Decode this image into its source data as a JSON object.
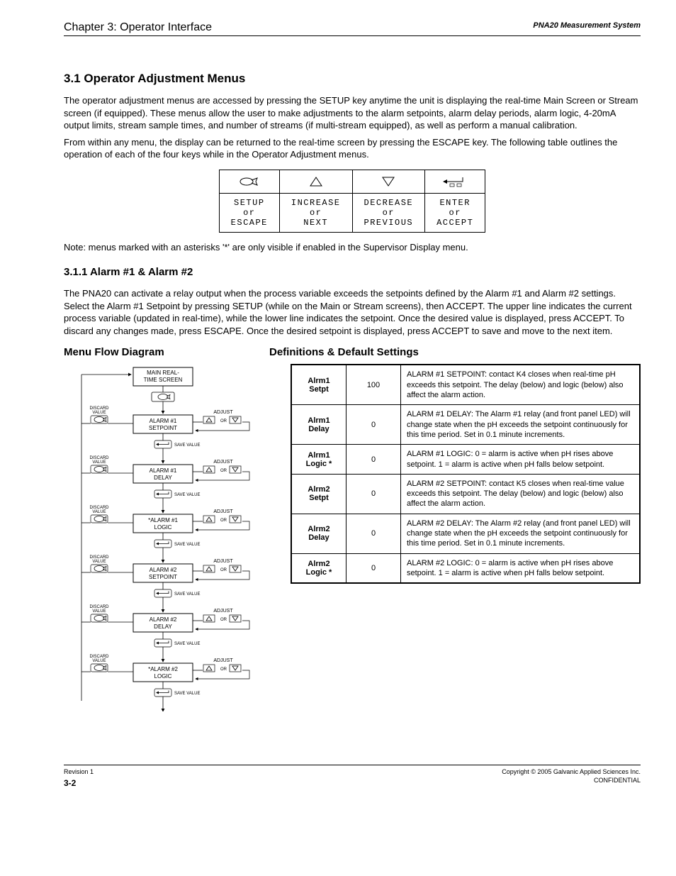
{
  "header": {
    "left": "Chapter 3: Operator Interface",
    "right": "PNA20 Measurement System"
  },
  "section": {
    "title": "3.1 Operator Adjustment Menus",
    "intro_p1": "The operator adjustment menus are accessed by pressing the ",
    "intro_setup": "SETUP",
    "intro_p1b": " key anytime the unit is displaying the real-time Main Screen or Stream screen (if equipped). These menus allow the user to make adjustments to the alarm setpoints, alarm delay periods, alarm logic, 4-20mA output limits, stream sample times, and number of streams (if multi-stream equipped), as well as perform a manual calibration.",
    "intro_p2a": "From within any menu, the display can be returned to the real-time screen by pressing the ",
    "intro_escape": "ESCAPE",
    "intro_p2b": " key. The following table outlines the operation of each of the four keys while in the Operator Adjustment menus.",
    "intro_note": "Note: menus marked with an asterisks '*' are only visible if enabled in the Supervisor Display menu."
  },
  "keytable": {
    "rows": [
      {
        "l1": "SETUP",
        "l2": "or",
        "l3": "ESCAPE"
      },
      {
        "l1": "INCREASE",
        "l2": "or",
        "l3": "NEXT"
      },
      {
        "l1": "DECREASE",
        "l2": "or",
        "l3": "PREVIOUS"
      },
      {
        "l1": "ENTER",
        "l2": "or",
        "l3": "ACCEPT"
      }
    ]
  },
  "alarm": {
    "heading": "3.1.1 Alarm #1 & Alarm #2",
    "text": "The PNA20 can activate a relay output when the process variable exceeds the setpoints defined by the Alarm #1 and Alarm #2 settings. Select the Alarm #1 Setpoint by pressing SETUP (while on the Main or Stream screens), then ",
    "accept": "ACCEPT",
    "text2": ". The upper line indicates the current process variable (updated in real-time), while the lower line indicates the setpoint. Once the desired value is displayed, press ACCEPT. To discard any changes made, press ESCAPE. Once the desired setpoint is displayed, press ACCEPT to save and move to the next item."
  },
  "menuflow": {
    "title": "Menu Flow Diagram",
    "defs_title": "Definitions & Default Settings",
    "params": [
      {
        "param": "Alrm1 Setpt",
        "default": "100",
        "desc": "ALARM #1 SETPOINT: contact K4 closes when real-time pH exceeds this setpoint. The delay (below) and logic (below) also affect the alarm action."
      },
      {
        "param": "Alrm1 Delay",
        "default": "0",
        "desc": "ALARM #1 DELAY: The Alarm #1 relay (and front panel LED) will change state when the pH exceeds the setpoint continuously for this time period. Set in 0.1 minute increments."
      },
      {
        "param": "Alrm1 Logic *",
        "default": "0",
        "desc": "ALARM #1 LOGIC: 0 = alarm is active when pH rises above setpoint. 1 = alarm is active when pH falls below setpoint."
      },
      {
        "param": "Alrm2 Setpt",
        "default": "0",
        "desc": "ALARM #2 SETPOINT: contact K5 closes when real-time value exceeds this setpoint. The delay (below) and logic (below) also affect the alarm action."
      },
      {
        "param": "Alrm2 Delay",
        "default": "0",
        "desc": "ALARM #2 DELAY: The Alarm #2 relay (and front panel LED) will change state when the pH exceeds the setpoint continuously for this time period. Set in 0.1 minute increments."
      },
      {
        "param": "Alrm2 Logic *",
        "default": "0",
        "desc": "ALARM #2 LOGIC: 0 = alarm is active when pH rises above setpoint. 1 = alarm is active when pH falls below setpoint."
      }
    ]
  },
  "flow_nodes": [
    "MAIN REAL-\nTIME SCREEN",
    "ALARM #1\nSETPOINT",
    "ALARM #1\nDELAY",
    "*ALARM #1\nLOGIC",
    "ALARM #2\nSETPOINT",
    "ALARM #2\nDELAY",
    "*ALARM #2\nLOGIC"
  ],
  "flow_labels": {
    "discard": "DISCARD\nVALUE",
    "adjust": "ADJUST",
    "save": "SAVE VALUE"
  },
  "footer": {
    "rev": "Revision 1",
    "page": "3-2",
    "copyright_a": "Copyright ",
    "copyright_b": " 2005 Galvanic Applied Sciences Inc.",
    "conf": "CONFIDENTIAL"
  },
  "style": {
    "colors": {
      "text": "#000000",
      "bg": "#ffffff",
      "border": "#000000"
    }
  }
}
